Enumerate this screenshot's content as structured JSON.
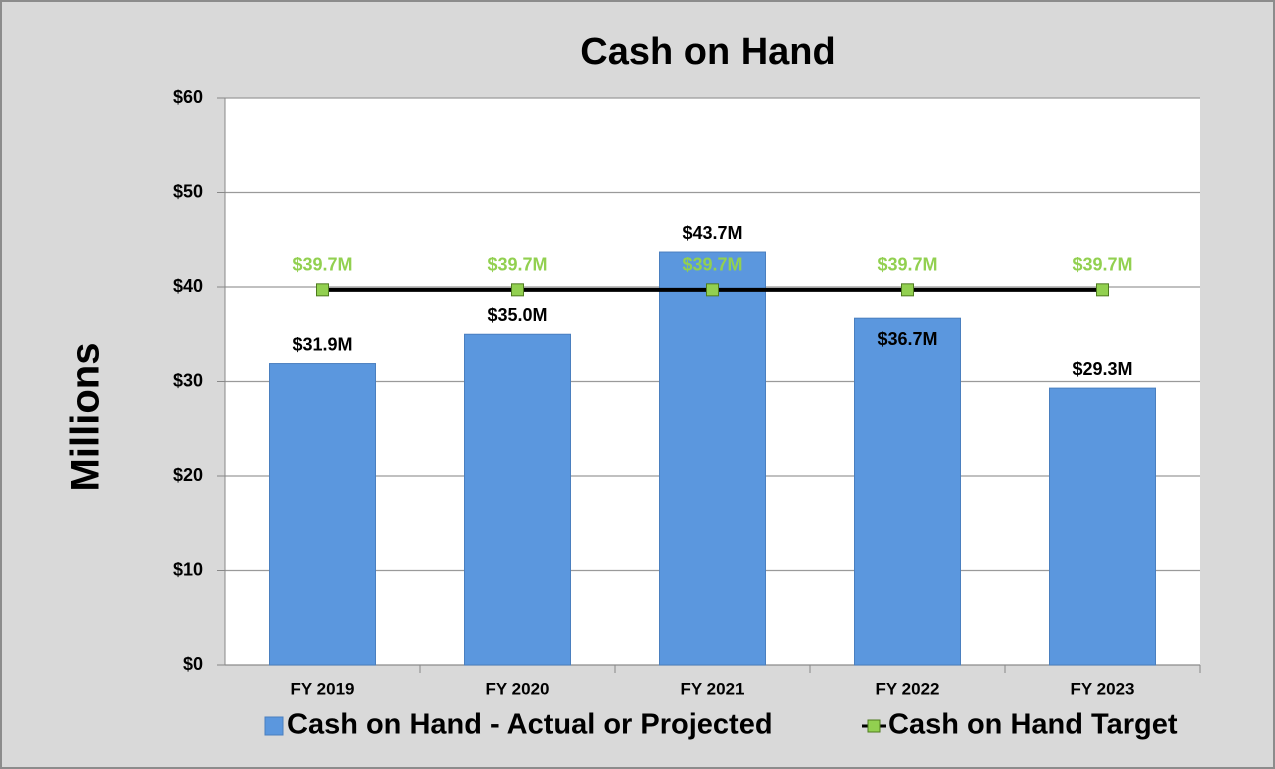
{
  "chart_data": {
    "type": "bar",
    "title": "Cash on Hand",
    "y_label": "Millions",
    "categories": [
      "FY 2019",
      "FY 2020",
      "FY 2021",
      "FY 2022",
      "FY 2023"
    ],
    "series": [
      {
        "name": "Cash on Hand - Actual or Projected",
        "type": "bar",
        "color": "#5b97de",
        "values": [
          31.9,
          35.0,
          43.7,
          36.7,
          29.3
        ],
        "value_labels": [
          "$31.9M",
          "$35.0M",
          "$43.7M",
          "$36.7M",
          "$29.3M"
        ]
      },
      {
        "name": "Cash on Hand Target",
        "type": "line",
        "color": "#000000",
        "marker_color": "#92d050",
        "values": [
          39.7,
          39.7,
          39.7,
          39.7,
          39.7
        ],
        "value_labels": [
          "$39.7M",
          "$39.7M",
          "$39.7M",
          "$39.7M",
          "$39.7M"
        ]
      }
    ],
    "ylim": [
      0,
      60
    ],
    "yticks": [
      {
        "value": 0,
        "label": "$0"
      },
      {
        "value": 10,
        "label": "$10"
      },
      {
        "value": 20,
        "label": "$20"
      },
      {
        "value": 30,
        "label": "$30"
      },
      {
        "value": 40,
        "label": "$40"
      },
      {
        "value": 50,
        "label": "$50"
      },
      {
        "value": 60,
        "label": "$60"
      }
    ],
    "grid": true,
    "legend": "bottom"
  }
}
